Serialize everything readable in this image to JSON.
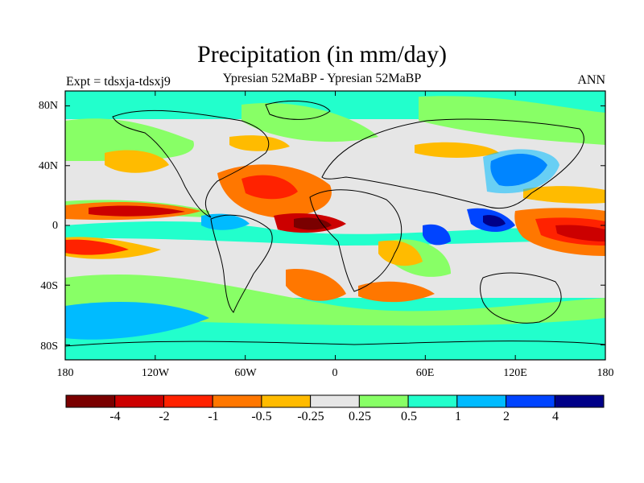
{
  "title": "Precipitation (in mm/day)",
  "subtitle": "Ypresian  52MaBP - Ypresian  52MaBP",
  "experiment": "Expt = tdsxja-tdsxj9",
  "season": "ANN",
  "chart_data": {
    "type": "heatmap",
    "projection": "cylindrical-equidistant",
    "xlim": [
      -180,
      180
    ],
    "ylim": [
      -90,
      90
    ],
    "x_ticks": [
      "180",
      "120W",
      "60W",
      "0",
      "60E",
      "120E",
      "180"
    ],
    "y_ticks": [
      "80N",
      "40N",
      "0",
      "40S",
      "80S"
    ],
    "colorbar": {
      "levels": [
        "-4",
        "-2",
        "-1",
        "-0.5",
        "-0.25",
        "0.25",
        "0.5",
        "1",
        "2",
        "4"
      ],
      "colors": [
        "#7a0000",
        "#cc0000",
        "#ff2200",
        "#ff7700",
        "#ffbb00",
        "#e6e6e6",
        "#88ff66",
        "#22ffcc",
        "#00bbff",
        "#0044ff",
        "#000088"
      ]
    },
    "background_color": "#e6e6e6",
    "coastline_color": "#000000"
  }
}
